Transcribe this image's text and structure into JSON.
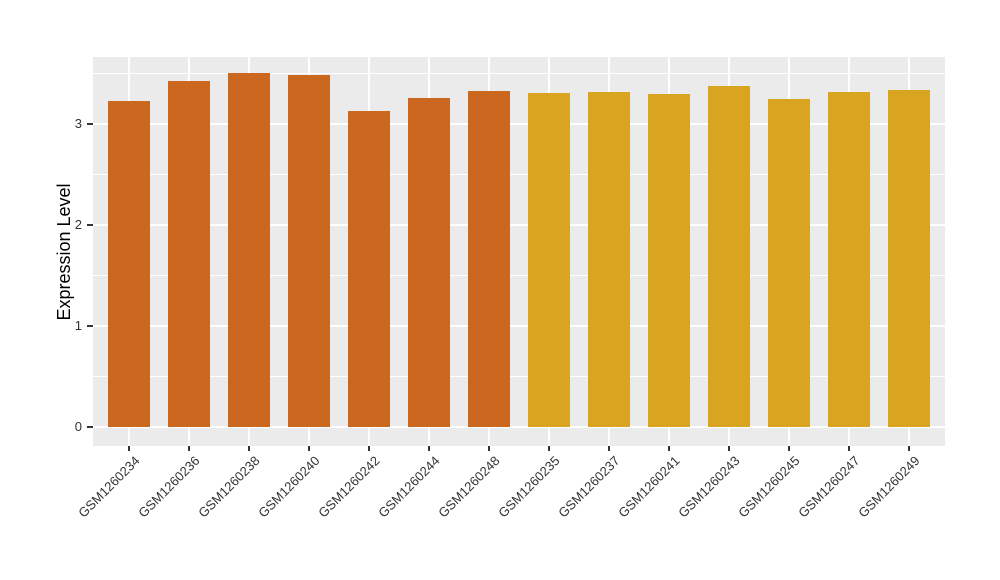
{
  "figure": {
    "background": "#FFFFFF"
  },
  "chart_data": {
    "type": "bar",
    "title": "",
    "xlabel": "",
    "ylabel": "Expression Level",
    "categories": [
      "GSM1260234",
      "GSM1260236",
      "GSM1260238",
      "GSM1260240",
      "GSM1260242",
      "GSM1260244",
      "GSM1260248",
      "GSM1260235",
      "GSM1260237",
      "GSM1260241",
      "GSM1260243",
      "GSM1260245",
      "GSM1260247",
      "GSM1260249"
    ],
    "values": [
      3.22,
      3.42,
      3.5,
      3.48,
      3.13,
      3.25,
      3.32,
      3.3,
      3.31,
      3.29,
      3.37,
      3.24,
      3.31,
      3.33
    ],
    "bar_colors": [
      "#CC671F",
      "#CC671F",
      "#CC671F",
      "#CC671F",
      "#CC671F",
      "#CC671F",
      "#CC671F",
      "#D9A521",
      "#D9A521",
      "#D9A521",
      "#D9A521",
      "#D9A521",
      "#D9A521",
      "#D9A521"
    ],
    "group_colors": {
      "orange_group": "#CC671F",
      "gold_group": "#D9A521"
    },
    "y_major_ticks": [
      0,
      1,
      2,
      3
    ],
    "y_minor_ticks": [
      0.5,
      1.5,
      2.5,
      3.5
    ],
    "ylim": [
      -0.19,
      3.66
    ],
    "grid": true,
    "legend": "none",
    "panel_background": "#EBEBEB",
    "gridline_color": "#FFFFFF",
    "axis_text_color": "#333333",
    "tick_mark_color": "#333333"
  }
}
